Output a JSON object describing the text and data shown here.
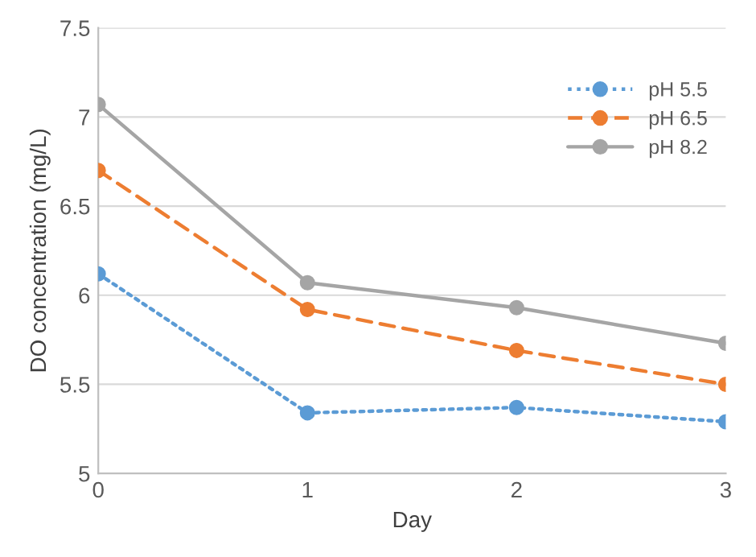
{
  "chart_data": {
    "type": "line",
    "xlabel": "Day",
    "ylabel": "DO concentration (mg/L)",
    "x": [
      0,
      1,
      2,
      3
    ],
    "series": [
      {
        "name": "pH 5.5",
        "color": "#5b9bd5",
        "line_style": "dotted",
        "values": [
          6.12,
          5.34,
          5.37,
          5.29
        ]
      },
      {
        "name": "pH 6.5",
        "color": "#ed7d31",
        "line_style": "dashed",
        "values": [
          6.7,
          5.92,
          5.69,
          5.5
        ]
      },
      {
        "name": "pH 8.2",
        "color": "#a5a5a5",
        "line_style": "solid",
        "values": [
          7.07,
          6.07,
          5.93,
          5.73
        ]
      }
    ],
    "xlim": [
      0,
      3
    ],
    "xticks": [
      0,
      1,
      2,
      3
    ],
    "ylim": [
      5,
      7.5
    ],
    "yticks": [
      5,
      5.5,
      6,
      6.5,
      7,
      7.5
    ],
    "grid": "y",
    "legend": "top right",
    "marker": "circle"
  }
}
